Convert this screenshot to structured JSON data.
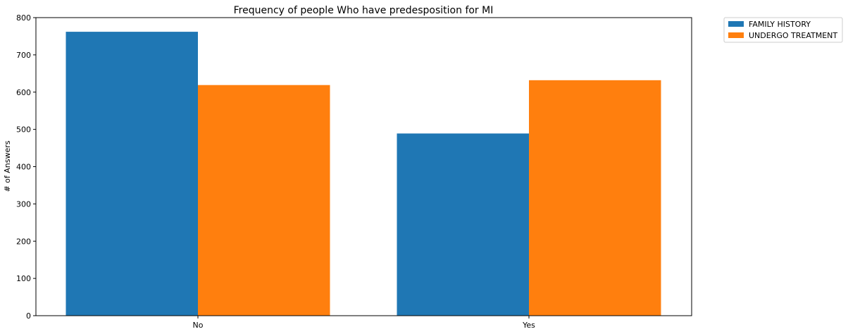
{
  "chart_data": {
    "type": "bar",
    "title": "Frequency of people Who have predesposition for MI",
    "xlabel": "",
    "ylabel": "# of Answers",
    "categories": [
      "No",
      "Yes"
    ],
    "series": [
      {
        "name": "FAMILY HISTORY",
        "color": "#1f77b4",
        "values": [
          762,
          489
        ]
      },
      {
        "name": "UNDERGO TREATMENT",
        "color": "#ff7f0e",
        "values": [
          619,
          632
        ]
      }
    ],
    "ylim": [
      0,
      800
    ],
    "yticks": [
      0,
      100,
      200,
      300,
      400,
      500,
      600,
      700,
      800
    ],
    "legend_position": "outside-top-right",
    "grid": false
  }
}
